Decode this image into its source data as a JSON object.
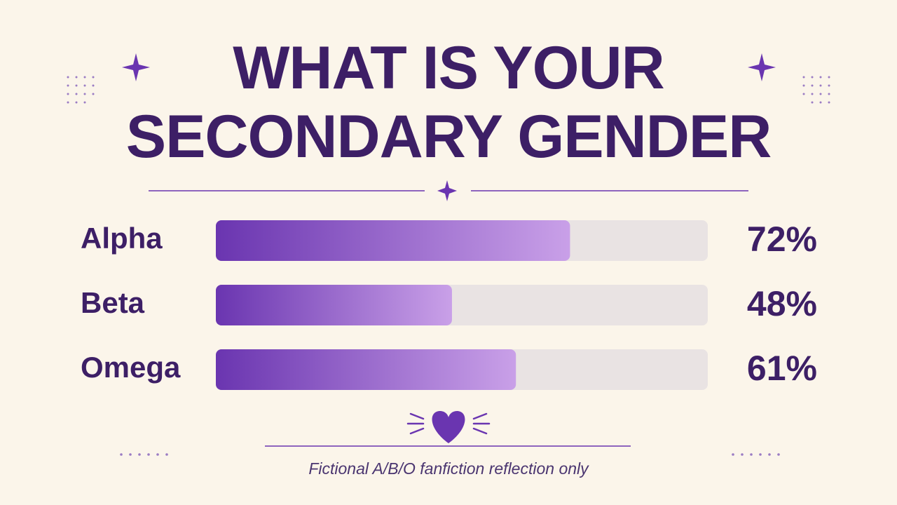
{
  "chart_data": {
    "type": "bar",
    "orientation": "horizontal",
    "title": "WHAT IS YOUR SECONDARY GENDER",
    "categories": [
      "Alpha",
      "Beta",
      "Omega"
    ],
    "values": [
      72,
      48,
      61
    ],
    "value_labels": [
      "72%",
      "48%",
      "61%"
    ],
    "xlim": [
      0,
      100
    ],
    "color": "#6a35b0",
    "note": "Fictional A/B/O fanfiction reflection only"
  }
}
